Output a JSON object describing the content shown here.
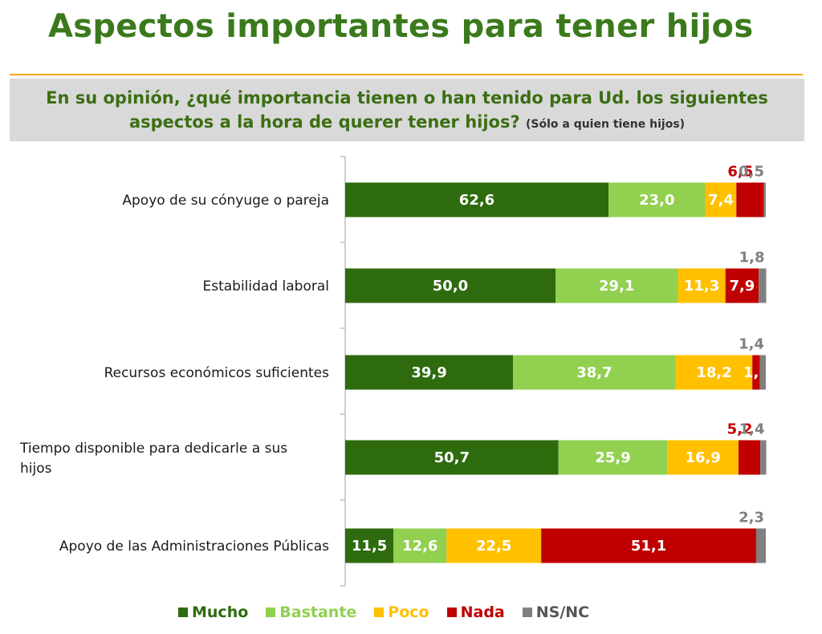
{
  "header": {
    "title": "Aspectos importantes para tener hijos",
    "question_line1": "En su opinión, ¿qué importancia tienen o han tenido para Ud. los siguientes",
    "question_line2": "aspectos a la hora de querer tener hijos?",
    "question_note": "(Sólo a quien tiene hijos)"
  },
  "colors": {
    "Mucho": "#2e6b0e",
    "Bastante": "#92d050",
    "Poco": "#ffc000",
    "Nada": "#c00000",
    "NS/NC": "#808080",
    "title": "#3b7a1c",
    "rule": "#f5a623"
  },
  "chart_data": {
    "type": "bar",
    "orientation": "horizontal",
    "stacked": true,
    "xlim": [
      0,
      100
    ],
    "categories": [
      "Apoyo de su cónyuge o pareja",
      "Estabilidad laboral",
      "Recursos económicos suficientes",
      "Tiempo disponible para dedicarle a sus hijos",
      "Apoyo de las Administraciones Públicas"
    ],
    "series": [
      {
        "name": "Mucho",
        "values": [
          62.6,
          50.0,
          39.9,
          50.7,
          11.5
        ],
        "labels": [
          "62,6",
          "50,0",
          "39,9",
          "50,7",
          "11,5"
        ]
      },
      {
        "name": "Bastante",
        "values": [
          23.0,
          29.1,
          38.7,
          25.9,
          12.6
        ],
        "labels": [
          "23,0",
          "29,1",
          "38,7",
          "25,9",
          "12,6"
        ]
      },
      {
        "name": "Poco",
        "values": [
          7.4,
          11.3,
          18.2,
          16.9,
          22.5
        ],
        "labels": [
          "7,4",
          "11,3",
          "18,2",
          "16,9",
          "22,5"
        ]
      },
      {
        "name": "Nada",
        "values": [
          6.5,
          7.9,
          1.8,
          5.2,
          51.1
        ],
        "labels": [
          "6,5",
          "7,9",
          "1,8",
          "5,2",
          "51,1"
        ]
      },
      {
        "name": "NS/NC",
        "values": [
          0.5,
          1.8,
          1.4,
          1.4,
          2.3
        ],
        "labels": [
          "0,5",
          "1,8",
          "1,4",
          "1,4",
          "2,3"
        ]
      }
    ],
    "legend_position": "bottom"
  }
}
